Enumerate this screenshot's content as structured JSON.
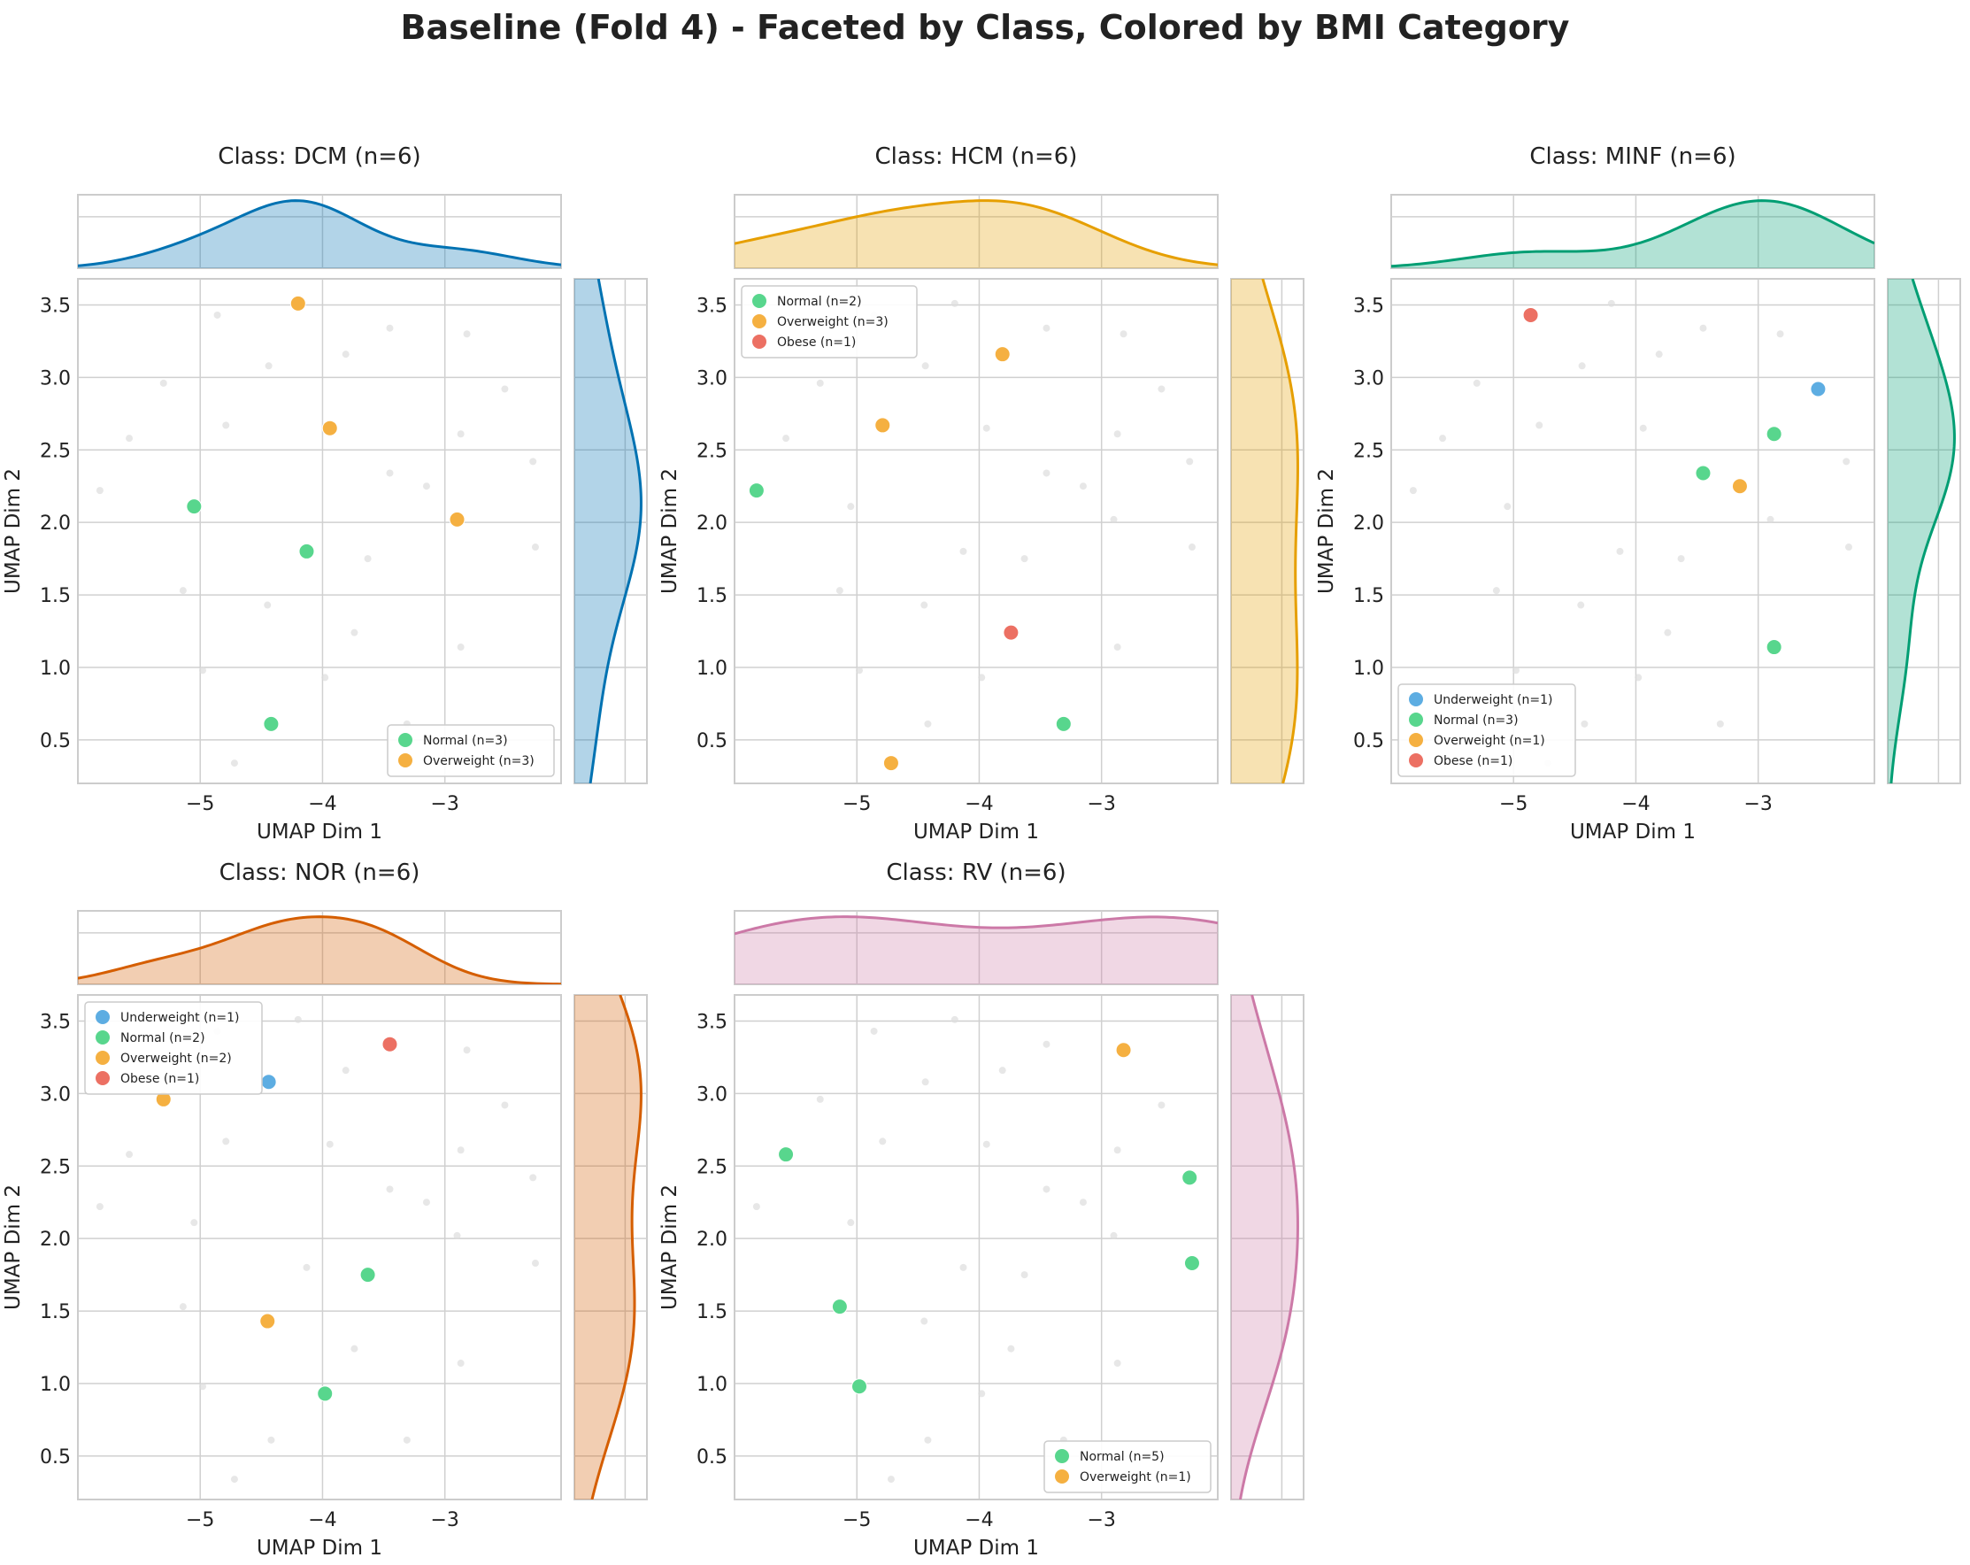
{
  "figure": {
    "title": "Baseline (Fold 4) - Faceted by Class, Colored by BMI Category"
  },
  "colors": {
    "Underweight": "#5dade2",
    "Normal": "#58d68d",
    "Overweight": "#f5b041",
    "Obese": "#ec7063",
    "background_points": "#dddddd",
    "grid": "#d0d0d0"
  },
  "chart_data": [
    {
      "type": "scatter",
      "title": "Class: DCM (n=6)",
      "xlabel": "UMAP Dim 1",
      "ylabel": "UMAP Dim 2",
      "xlim": [
        -6.0,
        -2.05
      ],
      "ylim": [
        0.2,
        3.68
      ],
      "xticks": [
        -5,
        -4,
        -3
      ],
      "yticks": [
        0.5,
        1.0,
        1.5,
        2.0,
        2.5,
        3.0,
        3.5
      ],
      "marginal_color": "#0072b2",
      "legend_position": "lower right",
      "legend": [
        "Normal (n=3)",
        "Overweight (n=3)"
      ],
      "series": [
        {
          "name": "Normal (n=3)",
          "category": "Normal",
          "points": [
            [
              -5.05,
              2.11
            ],
            [
              -4.13,
              1.8
            ],
            [
              -4.42,
              0.61
            ]
          ]
        },
        {
          "name": "Overweight (n=3)",
          "category": "Overweight",
          "points": [
            [
              -4.2,
              3.51
            ],
            [
              -3.94,
              2.65
            ],
            [
              -2.9,
              2.02
            ]
          ]
        }
      ]
    },
    {
      "type": "scatter",
      "title": "Class: HCM (n=6)",
      "xlabel": "UMAP Dim 1",
      "ylabel": "UMAP Dim 2",
      "xlim": [
        -6.0,
        -2.05
      ],
      "ylim": [
        0.2,
        3.68
      ],
      "xticks": [
        -5,
        -4,
        -3
      ],
      "yticks": [
        0.5,
        1.0,
        1.5,
        2.0,
        2.5,
        3.0,
        3.5
      ],
      "marginal_color": "#e69f00",
      "legend_position": "upper left",
      "legend": [
        "Normal (n=2)",
        "Overweight (n=3)",
        "Obese (n=1)"
      ],
      "series": [
        {
          "name": "Normal (n=2)",
          "category": "Normal",
          "points": [
            [
              -5.82,
              2.22
            ],
            [
              -3.31,
              0.61
            ]
          ]
        },
        {
          "name": "Overweight (n=3)",
          "category": "Overweight",
          "points": [
            [
              -3.81,
              3.16
            ],
            [
              -4.79,
              2.67
            ],
            [
              -4.72,
              0.34
            ]
          ]
        },
        {
          "name": "Obese (n=1)",
          "category": "Obese",
          "points": [
            [
              -3.74,
              1.24
            ]
          ]
        }
      ]
    },
    {
      "type": "scatter",
      "title": "Class: MINF (n=6)",
      "xlabel": "UMAP Dim 1",
      "ylabel": "UMAP Dim 2",
      "xlim": [
        -6.0,
        -2.05
      ],
      "ylim": [
        0.2,
        3.68
      ],
      "xticks": [
        -5,
        -4,
        -3
      ],
      "yticks": [
        0.5,
        1.0,
        1.5,
        2.0,
        2.5,
        3.0,
        3.5
      ],
      "marginal_color": "#009e73",
      "legend_position": "lower left",
      "legend": [
        "Underweight (n=1)",
        "Normal (n=3)",
        "Overweight (n=1)",
        "Obese (n=1)"
      ],
      "series": [
        {
          "name": "Underweight (n=1)",
          "category": "Underweight",
          "points": [
            [
              -2.51,
              2.92
            ]
          ]
        },
        {
          "name": "Normal (n=3)",
          "category": "Normal",
          "points": [
            [
              -2.87,
              2.61
            ],
            [
              -3.45,
              2.34
            ],
            [
              -2.87,
              1.14
            ]
          ]
        },
        {
          "name": "Overweight (n=1)",
          "category": "Overweight",
          "points": [
            [
              -3.15,
              2.25
            ]
          ]
        },
        {
          "name": "Obese (n=1)",
          "category": "Obese",
          "points": [
            [
              -4.86,
              3.43
            ]
          ]
        }
      ]
    },
    {
      "type": "scatter",
      "title": "Class: NOR (n=6)",
      "xlabel": "UMAP Dim 1",
      "ylabel": "UMAP Dim 2",
      "xlim": [
        -6.0,
        -2.05
      ],
      "ylim": [
        0.2,
        3.68
      ],
      "xticks": [
        -5,
        -4,
        -3
      ],
      "yticks": [
        0.5,
        1.0,
        1.5,
        2.0,
        2.5,
        3.0,
        3.5
      ],
      "marginal_color": "#d55e00",
      "legend_position": "upper left",
      "legend": [
        "Underweight (n=1)",
        "Normal (n=2)",
        "Overweight (n=2)",
        "Obese (n=1)"
      ],
      "series": [
        {
          "name": "Underweight (n=1)",
          "category": "Underweight",
          "points": [
            [
              -4.44,
              3.08
            ]
          ]
        },
        {
          "name": "Normal (n=2)",
          "category": "Normal",
          "points": [
            [
              -3.63,
              1.75
            ],
            [
              -3.98,
              0.93
            ]
          ]
        },
        {
          "name": "Overweight (n=2)",
          "category": "Overweight",
          "points": [
            [
              -5.3,
              2.96
            ],
            [
              -4.45,
              1.43
            ]
          ]
        },
        {
          "name": "Obese (n=1)",
          "category": "Obese",
          "points": [
            [
              -3.45,
              3.34
            ]
          ]
        }
      ]
    },
    {
      "type": "scatter",
      "title": "Class: RV (n=6)",
      "xlabel": "UMAP Dim 1",
      "ylabel": "UMAP Dim 2",
      "xlim": [
        -6.0,
        -2.05
      ],
      "ylim": [
        0.2,
        3.68
      ],
      "xticks": [
        -5,
        -4,
        -3
      ],
      "yticks": [
        0.5,
        1.0,
        1.5,
        2.0,
        2.5,
        3.0,
        3.5
      ],
      "marginal_color": "#cc79a7",
      "legend_position": "lower right",
      "legend": [
        "Normal (n=5)",
        "Overweight (n=1)"
      ],
      "series": [
        {
          "name": "Normal (n=5)",
          "category": "Normal",
          "points": [
            [
              -5.58,
              2.58
            ],
            [
              -2.28,
              2.42
            ],
            [
              -2.26,
              1.83
            ],
            [
              -5.14,
              1.53
            ],
            [
              -4.98,
              0.98
            ]
          ]
        },
        {
          "name": "Overweight (n=1)",
          "category": "Overweight",
          "points": [
            [
              -2.82,
              3.3
            ]
          ]
        }
      ]
    }
  ],
  "background_points": [
    [
      -4.2,
      3.51
    ],
    [
      -4.86,
      3.43
    ],
    [
      -3.45,
      3.34
    ],
    [
      -2.82,
      3.3
    ],
    [
      -3.81,
      3.16
    ],
    [
      -4.44,
      3.08
    ],
    [
      -5.3,
      2.96
    ],
    [
      -2.51,
      2.92
    ],
    [
      -4.79,
      2.67
    ],
    [
      -3.94,
      2.65
    ],
    [
      -2.87,
      2.61
    ],
    [
      -5.58,
      2.58
    ],
    [
      -2.28,
      2.42
    ],
    [
      -3.45,
      2.34
    ],
    [
      -3.15,
      2.25
    ],
    [
      -5.82,
      2.22
    ],
    [
      -5.05,
      2.11
    ],
    [
      -2.9,
      2.02
    ],
    [
      -2.26,
      1.83
    ],
    [
      -4.13,
      1.8
    ],
    [
      -3.63,
      1.75
    ],
    [
      -5.14,
      1.53
    ],
    [
      -4.45,
      1.43
    ],
    [
      -3.74,
      1.24
    ],
    [
      -2.87,
      1.14
    ],
    [
      -4.98,
      0.98
    ],
    [
      -3.98,
      0.93
    ],
    [
      -4.42,
      0.61
    ],
    [
      -3.31,
      0.61
    ],
    [
      -4.72,
      0.34
    ]
  ]
}
